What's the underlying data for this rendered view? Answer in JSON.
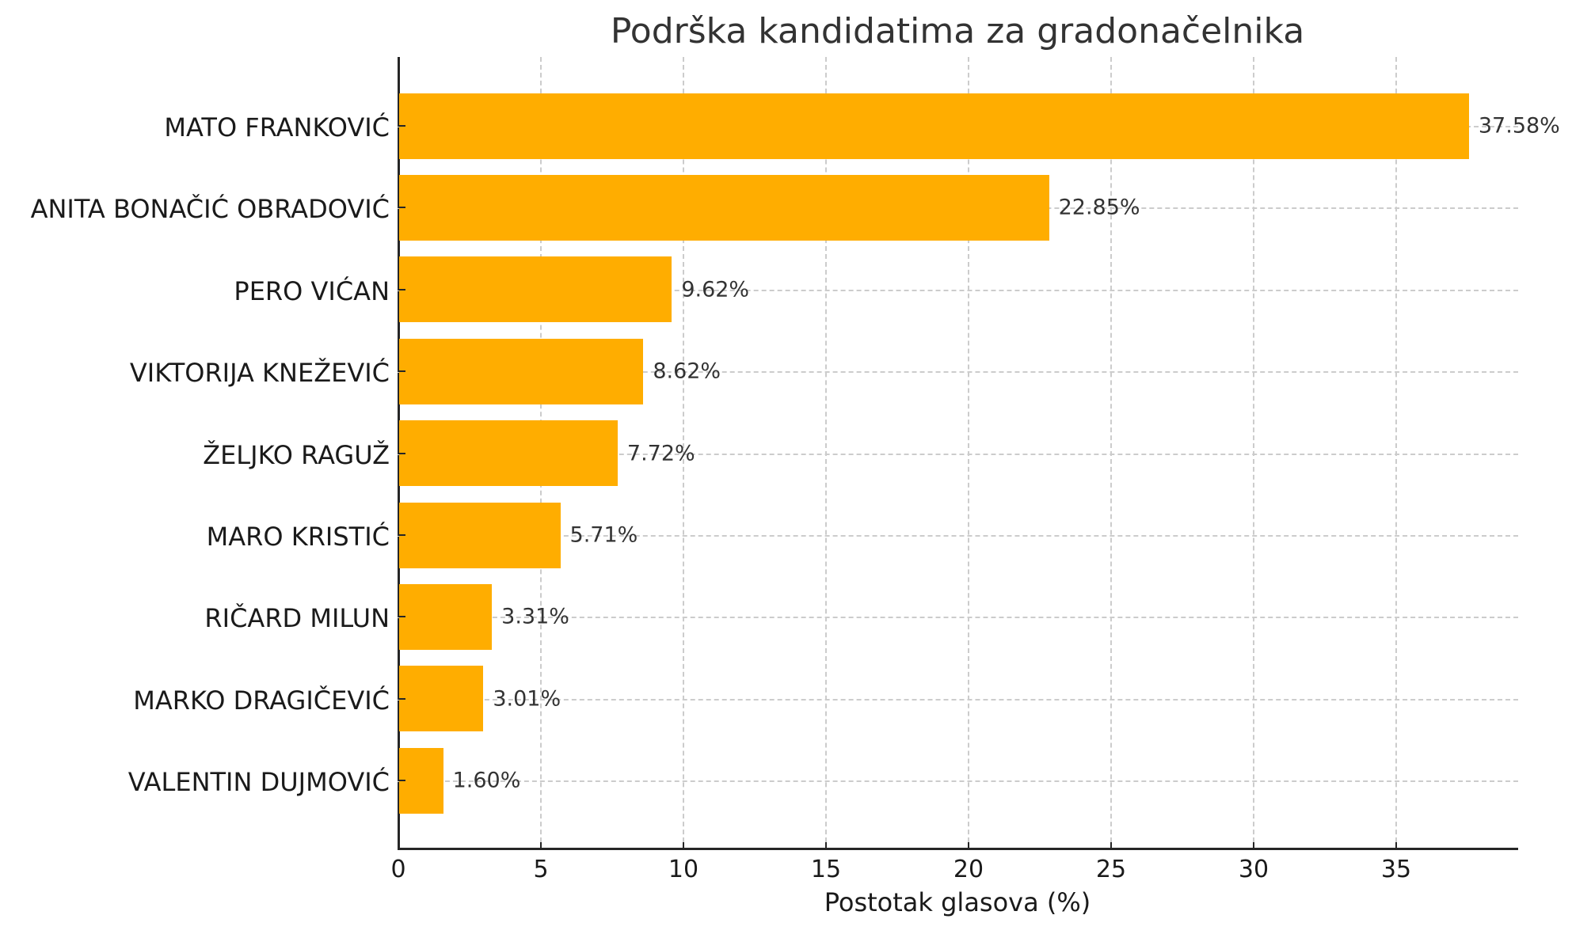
{
  "chart_data": {
    "type": "bar",
    "orientation": "horizontal",
    "title": "Podrška kandidatima za gradonačelnika",
    "xlabel": "Postotak glasova (%)",
    "ylabel": "",
    "categories": [
      "MATO FRANKOVIĆ",
      "ANITA BONAČIĆ OBRADOVIĆ",
      "PERO VIĆAN",
      "VIKTORIJA KNEŽEVIĆ",
      "ŽELJKO RAGUŽ",
      "MARO KRISTIĆ",
      "RIČARD MILUN",
      "MARKO DRAGIČEVIĆ",
      "VALENTIN DUJMOVIĆ"
    ],
    "values": [
      37.58,
      22.85,
      9.62,
      8.62,
      7.72,
      5.71,
      3.31,
      3.01,
      1.6
    ],
    "value_labels": [
      "37.58%",
      "22.85%",
      "9.62%",
      "8.62%",
      "7.72%",
      "5.71%",
      "3.31%",
      "3.01%",
      "1.60%"
    ],
    "xlim": [
      0,
      39.5
    ],
    "xticks": [
      "0",
      "5",
      "10",
      "15",
      "20",
      "25",
      "30",
      "35"
    ],
    "grid": true,
    "legend": null,
    "bar_color": "#ffad00"
  }
}
